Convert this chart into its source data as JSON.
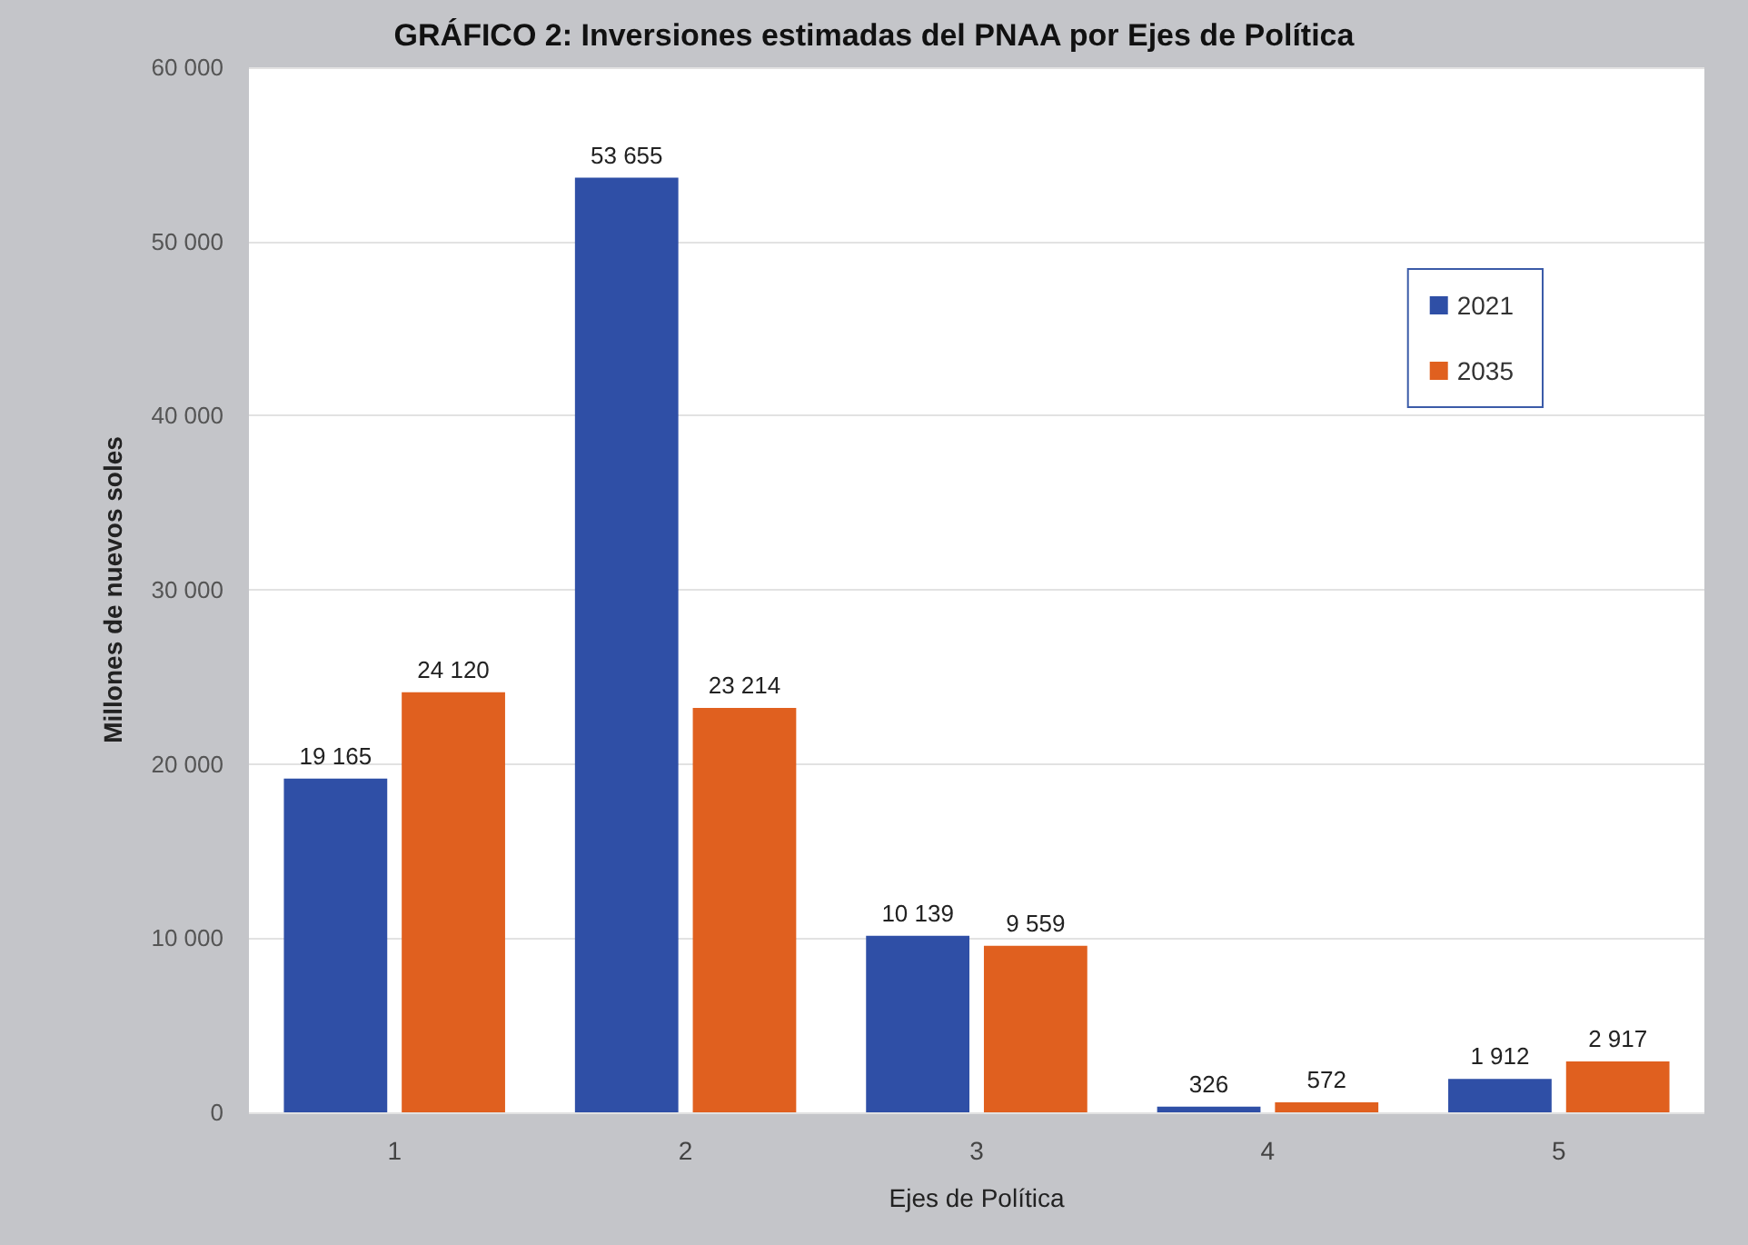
{
  "chart_data": {
    "type": "bar",
    "title": "GRÁFICO 2: Inversiones estimadas del PNAA por Ejes de Política",
    "xlabel": "Ejes de Política",
    "ylabel": "Millones de nuevos soles",
    "categories": [
      "1",
      "2",
      "3",
      "4",
      "5"
    ],
    "series": [
      {
        "name": "2021",
        "color": "#2f4fa6",
        "values": [
          19165,
          53655,
          10139,
          326,
          1912
        ],
        "value_labels": [
          "19 165",
          "53 655",
          "10 139",
          "326",
          "1 912"
        ]
      },
      {
        "name": "2035",
        "color": "#e0601f",
        "values": [
          24120,
          23214,
          9559,
          572,
          2917
        ],
        "value_labels": [
          "24 120",
          "23 214",
          "9 559",
          "572",
          "2 917"
        ]
      }
    ],
    "ylim": [
      0,
      60000
    ],
    "yticks": [
      0,
      {
        "value": 10000,
        "label": "10 000"
      },
      {
        "value": 20000,
        "label": "20 000"
      },
      {
        "value": 30000,
        "label": "30 000"
      },
      {
        "value": 40000,
        "label": "40 000"
      },
      {
        "value": 50000,
        "label": "50 000"
      },
      {
        "value": 60000,
        "label": "60 000"
      }
    ],
    "grid": "y",
    "legend": "top right"
  }
}
